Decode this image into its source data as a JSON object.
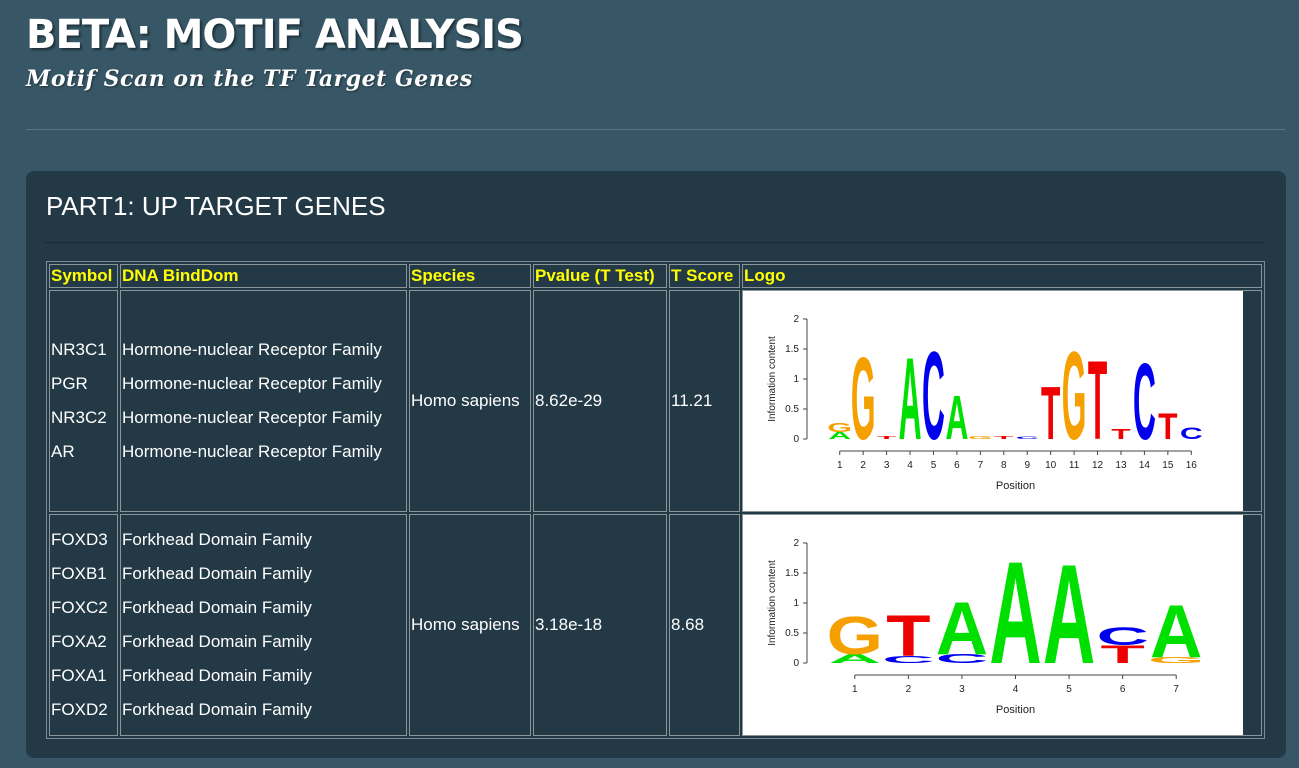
{
  "header": {
    "title": "BETA: MOTIF ANALYSIS",
    "subtitle": "Motif Scan on the TF Target Genes"
  },
  "panel": {
    "title": "PART1: UP TARGET GENES",
    "columns": [
      "Symbol",
      "DNA BindDom",
      "Species",
      "Pvalue (T Test)",
      "T Score",
      "Logo"
    ],
    "rows": [
      {
        "symbols": [
          "NR3C1",
          "PGR",
          "NR3C2",
          "AR"
        ],
        "domains": [
          "Hormone-nuclear Receptor Family",
          "Hormone-nuclear Receptor Family",
          "Hormone-nuclear Receptor Family",
          "Hormone-nuclear Receptor Family"
        ],
        "species": "Homo sapiens",
        "pvalue": "8.62e-29",
        "tscore": "11.21",
        "logo": {
          "ylabel": "Information content",
          "xlabel": "Position",
          "yticks": [
            "0",
            "0.5",
            "1",
            "1.5",
            "2"
          ],
          "positions": [
            "1",
            "2",
            "3",
            "4",
            "5",
            "6",
            "7",
            "8",
            "9",
            "10",
            "11",
            "12",
            "13",
            "14",
            "15",
            "16"
          ],
          "letters": [
            [
              {
                "l": "A",
                "h": 0.12
              },
              {
                "l": "G",
                "h": 0.15
              }
            ],
            [
              {
                "l": "G",
                "h": 1.4
              }
            ],
            [
              {
                "l": "T",
                "h": 0.05
              }
            ],
            [
              {
                "l": "A",
                "h": 1.4
              }
            ],
            [
              {
                "l": "C",
                "h": 1.5
              }
            ],
            [
              {
                "l": "A",
                "h": 0.75
              }
            ],
            [
              {
                "l": "G",
                "h": 0.05
              }
            ],
            [
              {
                "l": "T",
                "h": 0.05
              }
            ],
            [
              {
                "l": "C",
                "h": 0.04
              }
            ],
            [
              {
                "l": "T",
                "h": 0.9
              }
            ],
            [
              {
                "l": "G",
                "h": 1.5
              }
            ],
            [
              {
                "l": "T",
                "h": 1.35
              }
            ],
            [
              {
                "l": "T",
                "h": 0.18
              }
            ],
            [
              {
                "l": "C",
                "h": 1.3
              }
            ],
            [
              {
                "l": "T",
                "h": 0.45
              }
            ],
            [
              {
                "l": "C",
                "h": 0.2
              }
            ]
          ]
        }
      },
      {
        "symbols": [
          "FOXD3",
          "FOXB1",
          "FOXC2",
          "FOXA2",
          "FOXA1",
          "FOXD2"
        ],
        "domains": [
          "Forkhead Domain Family",
          "Forkhead Domain Family",
          "Forkhead Domain Family",
          "Forkhead Domain Family",
          "Forkhead Domain Family",
          "Forkhead Domain Family"
        ],
        "species": "Homo sapiens",
        "pvalue": "3.18e-18",
        "tscore": "8.68",
        "logo": {
          "ylabel": "Information content",
          "xlabel": "Position",
          "yticks": [
            "0",
            "0.5",
            "1",
            "1.5",
            "2"
          ],
          "positions": [
            "1",
            "2",
            "3",
            "4",
            "5",
            "6",
            "7"
          ],
          "letters": [
            [
              {
                "l": "A",
                "h": 0.15
              },
              {
                "l": "G",
                "h": 0.65
              }
            ],
            [
              {
                "l": "C",
                "h": 0.12
              },
              {
                "l": "T",
                "h": 0.7
              }
            ],
            [
              {
                "l": "C",
                "h": 0.15
              },
              {
                "l": "A",
                "h": 0.9
              }
            ],
            [
              {
                "l": "A",
                "h": 1.75
              }
            ],
            [
              {
                "l": "A",
                "h": 1.7
              }
            ],
            [
              {
                "l": "T",
                "h": 0.3
              },
              {
                "l": "C",
                "h": 0.3
              }
            ],
            [
              {
                "l": "G",
                "h": 0.1
              },
              {
                "l": "A",
                "h": 0.9
              }
            ]
          ]
        }
      }
    ]
  },
  "colors": {
    "A": "#00e000",
    "C": "#0000ee",
    "G": "#f5a000",
    "T": "#ee0000",
    "header_text": "#ffff00"
  }
}
